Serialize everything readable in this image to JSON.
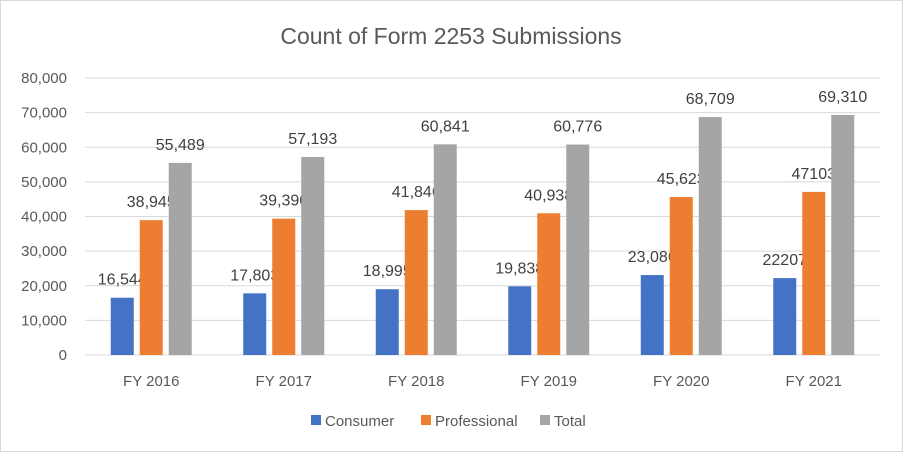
{
  "chart_data": {
    "type": "bar",
    "title": "Count of Form 2253 Submissions",
    "categories": [
      "FY 2016",
      "FY 2017",
      "FY 2018",
      "FY 2019",
      "FY 2020",
      "FY 2021"
    ],
    "series": [
      {
        "name": "Consumer",
        "color": "#4472c4",
        "values": [
          16544,
          17803,
          18995,
          19838,
          23086,
          22207
        ],
        "labels": [
          "16,544",
          "17,803",
          "18,995",
          "19,838",
          "23,086",
          "22207"
        ]
      },
      {
        "name": "Professional",
        "color": "#ed7d31",
        "values": [
          38945,
          39390,
          41846,
          40938,
          45623,
          47103
        ],
        "labels": [
          "38,945",
          "39,390",
          "41,846",
          "40,938",
          "45,623",
          "47103"
        ]
      },
      {
        "name": "Total",
        "color": "#a5a5a5",
        "values": [
          55489,
          57193,
          60841,
          60776,
          68709,
          69310
        ],
        "labels": [
          "55,489",
          "57,193",
          "60,841",
          "60,776",
          "68,709",
          "69,310"
        ]
      }
    ],
    "ylim": [
      0,
      80000
    ],
    "yticks": [
      0,
      10000,
      20000,
      30000,
      40000,
      50000,
      60000,
      70000,
      80000
    ],
    "ytick_labels": [
      "0",
      "10,000",
      "20,000",
      "30,000",
      "40,000",
      "50,000",
      "60,000",
      "70,000",
      "80,000"
    ],
    "grid": true,
    "legend_position": "bottom"
  }
}
